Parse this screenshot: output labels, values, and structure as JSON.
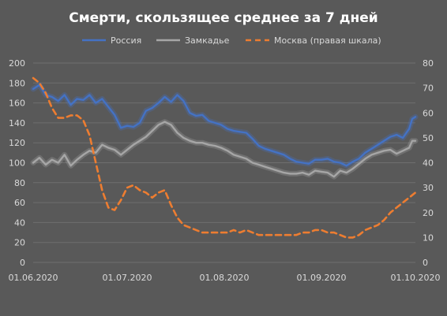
{
  "chart_data": {
    "type": "line",
    "title": "Смерти, скользящее среднее за 7 дней",
    "legend_position": "top",
    "grid": true,
    "x_tick_labels": [
      "01.06.2020",
      "01.07.2020",
      "01.08.2020",
      "01.09.2020",
      "01.10.2020"
    ],
    "x_tick_days": [
      0,
      30,
      61,
      92,
      122
    ],
    "y_left": {
      "min": 0,
      "max": 200,
      "step": 20
    },
    "y_right": {
      "min": 0,
      "max": 80,
      "step": 10
    },
    "series": [
      {
        "name": "Россия",
        "axis": "left",
        "color": "#4472C4",
        "style": "solid",
        "points": [
          [
            0,
            174
          ],
          [
            2,
            178
          ],
          [
            4,
            168
          ],
          [
            6,
            166
          ],
          [
            8,
            162
          ],
          [
            10,
            168
          ],
          [
            12,
            158
          ],
          [
            14,
            164
          ],
          [
            16,
            163
          ],
          [
            18,
            168
          ],
          [
            20,
            160
          ],
          [
            22,
            164
          ],
          [
            24,
            156
          ],
          [
            26,
            148
          ],
          [
            28,
            135
          ],
          [
            30,
            137
          ],
          [
            32,
            136
          ],
          [
            34,
            140
          ],
          [
            36,
            152
          ],
          [
            38,
            155
          ],
          [
            40,
            160
          ],
          [
            42,
            166
          ],
          [
            44,
            161
          ],
          [
            46,
            168
          ],
          [
            48,
            162
          ],
          [
            50,
            150
          ],
          [
            52,
            147
          ],
          [
            54,
            148
          ],
          [
            56,
            142
          ],
          [
            58,
            140
          ],
          [
            60,
            138
          ],
          [
            62,
            134
          ],
          [
            64,
            132
          ],
          [
            66,
            131
          ],
          [
            68,
            130
          ],
          [
            70,
            124
          ],
          [
            72,
            117
          ],
          [
            74,
            114
          ],
          [
            76,
            112
          ],
          [
            78,
            110
          ],
          [
            80,
            108
          ],
          [
            82,
            104
          ],
          [
            84,
            101
          ],
          [
            86,
            100
          ],
          [
            88,
            99
          ],
          [
            90,
            103
          ],
          [
            92,
            103
          ],
          [
            94,
            104
          ],
          [
            96,
            101
          ],
          [
            98,
            100
          ],
          [
            100,
            97
          ],
          [
            102,
            101
          ],
          [
            104,
            104
          ],
          [
            106,
            110
          ],
          [
            108,
            114
          ],
          [
            110,
            118
          ],
          [
            112,
            122
          ],
          [
            114,
            126
          ],
          [
            116,
            128
          ],
          [
            118,
            125
          ],
          [
            120,
            134
          ],
          [
            121,
            144
          ],
          [
            122,
            146
          ]
        ]
      },
      {
        "name": "Замкадье",
        "axis": "left",
        "color": "#A6A6A6",
        "style": "solid",
        "points": [
          [
            0,
            100
          ],
          [
            2,
            105
          ],
          [
            4,
            98
          ],
          [
            6,
            103
          ],
          [
            8,
            100
          ],
          [
            10,
            108
          ],
          [
            12,
            97
          ],
          [
            14,
            103
          ],
          [
            16,
            108
          ],
          [
            18,
            112
          ],
          [
            20,
            110
          ],
          [
            22,
            118
          ],
          [
            24,
            115
          ],
          [
            26,
            113
          ],
          [
            28,
            108
          ],
          [
            30,
            113
          ],
          [
            32,
            118
          ],
          [
            34,
            122
          ],
          [
            36,
            126
          ],
          [
            38,
            132
          ],
          [
            40,
            138
          ],
          [
            42,
            141
          ],
          [
            44,
            138
          ],
          [
            46,
            130
          ],
          [
            48,
            125
          ],
          [
            50,
            122
          ],
          [
            52,
            120
          ],
          [
            54,
            120
          ],
          [
            56,
            118
          ],
          [
            58,
            117
          ],
          [
            60,
            115
          ],
          [
            62,
            112
          ],
          [
            64,
            108
          ],
          [
            66,
            106
          ],
          [
            68,
            104
          ],
          [
            70,
            100
          ],
          [
            72,
            98
          ],
          [
            74,
            96
          ],
          [
            76,
            94
          ],
          [
            78,
            92
          ],
          [
            80,
            90
          ],
          [
            82,
            89
          ],
          [
            84,
            89
          ],
          [
            86,
            90
          ],
          [
            88,
            88
          ],
          [
            90,
            92
          ],
          [
            92,
            91
          ],
          [
            94,
            90
          ],
          [
            96,
            86
          ],
          [
            98,
            92
          ],
          [
            100,
            90
          ],
          [
            102,
            94
          ],
          [
            104,
            99
          ],
          [
            106,
            104
          ],
          [
            108,
            108
          ],
          [
            110,
            110
          ],
          [
            112,
            112
          ],
          [
            114,
            113
          ],
          [
            116,
            109
          ],
          [
            118,
            112
          ],
          [
            120,
            115
          ],
          [
            121,
            122
          ],
          [
            122,
            122
          ]
        ]
      },
      {
        "name": "Москва (правая шкала)",
        "axis": "right",
        "color": "#ED7D31",
        "style": "dashed",
        "points": [
          [
            0,
            74
          ],
          [
            2,
            72
          ],
          [
            4,
            68
          ],
          [
            6,
            62
          ],
          [
            8,
            58
          ],
          [
            10,
            58
          ],
          [
            12,
            59
          ],
          [
            14,
            59
          ],
          [
            16,
            57
          ],
          [
            18,
            51
          ],
          [
            20,
            40
          ],
          [
            22,
            29
          ],
          [
            24,
            22
          ],
          [
            26,
            21
          ],
          [
            28,
            25
          ],
          [
            30,
            30
          ],
          [
            32,
            31
          ],
          [
            34,
            29
          ],
          [
            36,
            28
          ],
          [
            38,
            26
          ],
          [
            40,
            28
          ],
          [
            42,
            29
          ],
          [
            44,
            23
          ],
          [
            46,
            18
          ],
          [
            48,
            15
          ],
          [
            50,
            14
          ],
          [
            52,
            13
          ],
          [
            54,
            12
          ],
          [
            56,
            12
          ],
          [
            58,
            12
          ],
          [
            60,
            12
          ],
          [
            62,
            12
          ],
          [
            64,
            13
          ],
          [
            66,
            12
          ],
          [
            68,
            13
          ],
          [
            70,
            12
          ],
          [
            72,
            11
          ],
          [
            74,
            11
          ],
          [
            76,
            11
          ],
          [
            78,
            11
          ],
          [
            80,
            11
          ],
          [
            82,
            11
          ],
          [
            84,
            11
          ],
          [
            86,
            12
          ],
          [
            88,
            12
          ],
          [
            90,
            13
          ],
          [
            92,
            13
          ],
          [
            94,
            12
          ],
          [
            96,
            12
          ],
          [
            98,
            11
          ],
          [
            100,
            10
          ],
          [
            102,
            10
          ],
          [
            104,
            11
          ],
          [
            106,
            13
          ],
          [
            108,
            14
          ],
          [
            110,
            15
          ],
          [
            112,
            17
          ],
          [
            114,
            20
          ],
          [
            116,
            22
          ],
          [
            118,
            24
          ],
          [
            120,
            26
          ],
          [
            122,
            28
          ]
        ]
      }
    ]
  }
}
